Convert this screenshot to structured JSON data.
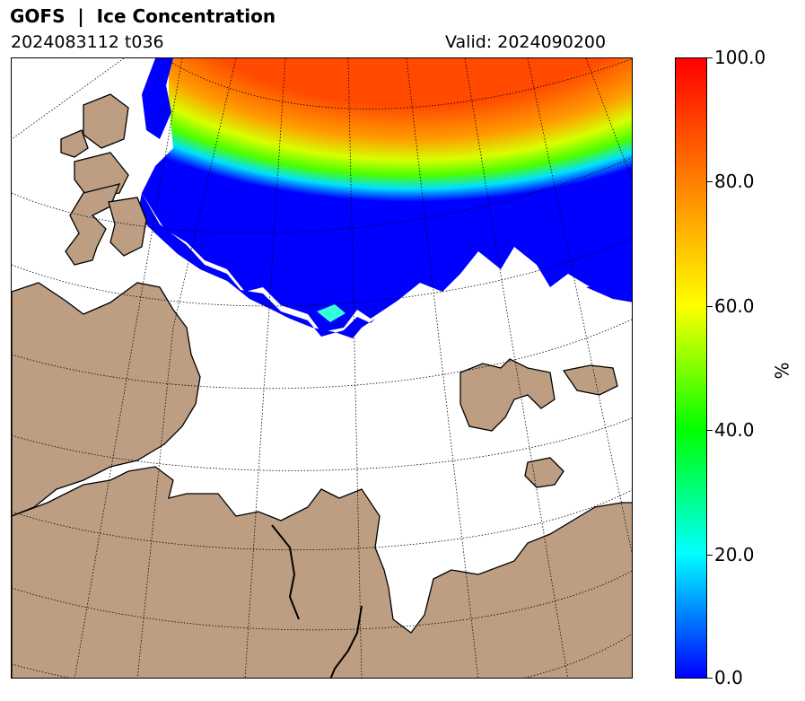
{
  "header": {
    "title": "GOFS  |  Ice Concentration",
    "run": "2024083112 t036",
    "valid": "Valid: 2024090200"
  },
  "colorbar": {
    "unit": "%",
    "ticks": [
      "100.0",
      "80.0",
      "60.0",
      "40.0",
      "20.0",
      "0.0"
    ],
    "range": [
      0,
      100
    ],
    "colors": [
      "#0000ff",
      "#00ffff",
      "#00ff00",
      "#ffff00",
      "#ff8000",
      "#ff0000"
    ]
  },
  "map": {
    "land_color": "#bd9e82",
    "ocean_color": "#ffffff",
    "coastline_color": "#000000",
    "graticule_style": "dotted"
  }
}
